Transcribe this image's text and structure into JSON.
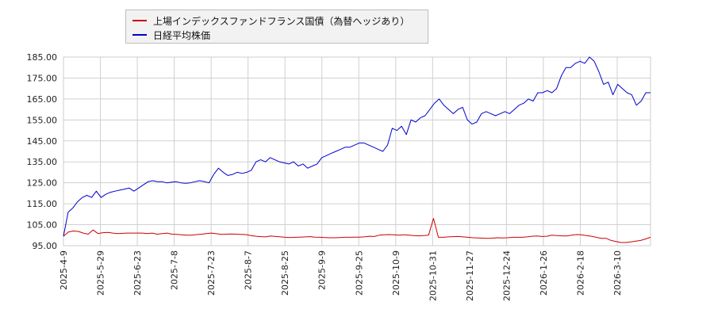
{
  "chart_data": {
    "type": "line",
    "ylim": [
      95,
      185
    ],
    "y_ticks": [
      "95.00",
      "105.00",
      "115.00",
      "125.00",
      "135.00",
      "145.00",
      "155.00",
      "165.00",
      "175.00",
      "185.00"
    ],
    "x_tick_labels": [
      "2025-4-9",
      "2025-5-29",
      "2025-6-23",
      "2025-7-8",
      "2025-7-23",
      "2025-8-7",
      "2025-8-25",
      "2025-9-9",
      "2025-9-25",
      "2025-10-9",
      "2025-10-31",
      "2025-11-27",
      "2025-12-24",
      "2026-1-26",
      "2026-2-18",
      "2026-3-10"
    ],
    "grid": true,
    "legend_position": "top-left",
    "series": [
      {
        "name": "上場インデックスファンドフランス国債（為替ヘッジあり）",
        "color": "#cc0000",
        "values": [
          99.5,
          101.5,
          102,
          101.8,
          101,
          100.5,
          102.5,
          100.8,
          101.2,
          101.3,
          101,
          100.8,
          100.9,
          101,
          101,
          101,
          101,
          100.8,
          101,
          100.5,
          100.8,
          101,
          100.5,
          100.4,
          100.2,
          100,
          100,
          100.3,
          100.5,
          100.8,
          101,
          100.7,
          100.4,
          100.5,
          100.6,
          100.5,
          100.4,
          100.3,
          99.8,
          99.5,
          99.3,
          99.2,
          99.6,
          99.4,
          99.2,
          99,
          98.9,
          99,
          99.1,
          99.2,
          99.3,
          99.1,
          99,
          98.9,
          98.8,
          98.8,
          98.9,
          99,
          99,
          99.1,
          99.1,
          99.2,
          99.5,
          99.4,
          100,
          100.2,
          100.3,
          100.2,
          100,
          100.2,
          100,
          99.8,
          99.7,
          99.8,
          100,
          108,
          99,
          99,
          99.2,
          99.3,
          99.4,
          99.2,
          99,
          98.8,
          98.7,
          98.6,
          98.5,
          98.6,
          98.8,
          98.7,
          98.8,
          99,
          99,
          99,
          99.2,
          99.5,
          99.6,
          99.4,
          99.5,
          100,
          99.8,
          99.7,
          99.6,
          100,
          100.3,
          100.2,
          99.8,
          99.5,
          99,
          98.5,
          98.5,
          97.5,
          97,
          96.5,
          96.5,
          96.8,
          97.2,
          97.5,
          98.2,
          99
        ]
      },
      {
        "name": "日経平均株価",
        "color": "#0000cc",
        "values": [
          99.5,
          111,
          113,
          116,
          118,
          119,
          118,
          121,
          118,
          119.5,
          120.5,
          121,
          121.5,
          122,
          122.5,
          121,
          122.5,
          124,
          125.5,
          126,
          125.5,
          125.5,
          125,
          125.3,
          125.5,
          125,
          124.8,
          125,
          125.5,
          126,
          125.5,
          125,
          129,
          132,
          130,
          128.5,
          129,
          130,
          129.5,
          130,
          131,
          135,
          136,
          135,
          137,
          136,
          135,
          134.5,
          134,
          135,
          133,
          134,
          132,
          133,
          134,
          137,
          138,
          139,
          140,
          141,
          142,
          142,
          143,
          144,
          144,
          143,
          142,
          141,
          140,
          143,
          151,
          150,
          152,
          148,
          155,
          154,
          156,
          157,
          160,
          163,
          165,
          162,
          160,
          158,
          160,
          161,
          155,
          153,
          154,
          158,
          159,
          158,
          157,
          158,
          159,
          158,
          160,
          162,
          163,
          165,
          164,
          168,
          168,
          169,
          168,
          170,
          176,
          180,
          180,
          182,
          183,
          182,
          185,
          183,
          178,
          172,
          173,
          167,
          172,
          170,
          168,
          167,
          162,
          164,
          168,
          168
        ]
      }
    ]
  },
  "legend": {
    "items": [
      {
        "label": "上場インデックスファンドフランス国債（為替ヘッジあり）",
        "color": "#cc0000"
      },
      {
        "label": "日経平均株価",
        "color": "#0000cc"
      }
    ]
  }
}
